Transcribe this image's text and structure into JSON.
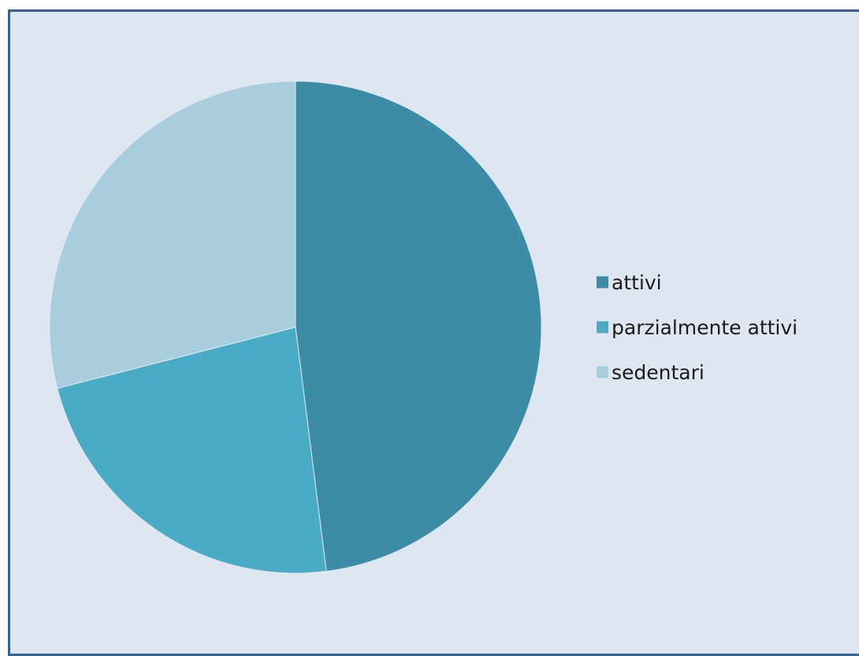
{
  "chart_data": {
    "type": "pie",
    "categories": [
      "attivi",
      "parzialmente attivi",
      "sedentari"
    ],
    "values": [
      48,
      23,
      29
    ],
    "colors": [
      "#3d8ca5",
      "#4aabc5",
      "#a8cedd"
    ],
    "legend_position": "right",
    "start_angle": "top",
    "direction": "clockwise"
  },
  "frame": {
    "background": "#dde6f1",
    "border_color": "#35638e"
  }
}
